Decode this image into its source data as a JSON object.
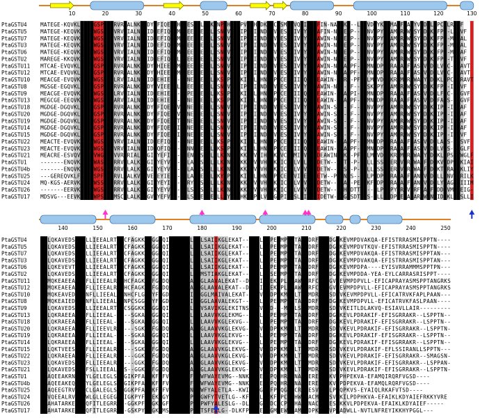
{
  "colors": {
    "identical": "#000000",
    "similar": "#c8c8c8",
    "conserved_red": "#d42020",
    "strand": "#ffff00",
    "helix": "#9cc8ee",
    "line": "#e08020",
    "magenta_arrow": "#ff33cc",
    "blue_arrow": "#1a33cc"
  },
  "block1": {
    "ruler_start": 1,
    "ruler_ticks": [
      "10",
      "20",
      "30",
      "40",
      "50",
      "60",
      "70",
      "80",
      "90",
      "100",
      "110",
      "120",
      "130"
    ],
    "secondary_structure": [
      {
        "type": "strand",
        "from": 4,
        "to": 10
      },
      {
        "type": "helix",
        "from": 16,
        "to": 31
      },
      {
        "type": "strand",
        "from": 38,
        "to": 43
      },
      {
        "type": "helix",
        "from": 49,
        "to": 56
      },
      {
        "type": "strand",
        "from": 64,
        "to": 69
      },
      {
        "type": "strand",
        "from": 71,
        "to": 74
      },
      {
        "type": "helix",
        "from": 76,
        "to": 88
      },
      {
        "type": "helix",
        "from": 95,
        "to": 122
      },
      {
        "type": "helix",
        "from": 127,
        "to": 130
      }
    ],
    "markers": [
      {
        "color": "magenta",
        "pos": 20
      },
      {
        "color": "magenta",
        "pos": 49
      },
      {
        "color": "magenta",
        "pos": 68
      },
      {
        "color": "magenta",
        "pos": 80
      },
      {
        "color": "magenta",
        "pos": 81
      },
      {
        "color": "blue",
        "pos": 130
      }
    ],
    "red_columns": [
      17,
      18,
      19,
      55,
      84,
      130
    ],
    "identical_columns": [
      13,
      14,
      15,
      16,
      17,
      18,
      20,
      21,
      22,
      26,
      31,
      32,
      35,
      40,
      41,
      43,
      44,
      47,
      48,
      50,
      51,
      53,
      56,
      58,
      59,
      60,
      63,
      64,
      66,
      69,
      70,
      72,
      75,
      76,
      79,
      81,
      82,
      83,
      84,
      90,
      91,
      93,
      97,
      98,
      101,
      104,
      105,
      108,
      110,
      112,
      115,
      117,
      119,
      122,
      125,
      126,
      130
    ],
    "similar_columns": [
      11,
      12,
      23,
      24,
      29,
      30,
      37,
      39,
      45,
      52,
      57,
      62,
      68,
      73,
      77,
      80,
      86,
      92,
      96,
      99,
      103,
      106,
      109,
      113,
      116,
      118,
      121,
      123,
      127
    ],
    "sequences": [
      {
        "name": "PtaGSTU4",
        "seq": "MATEGE-KQVKLHGVWGSPFVVRVRIALNKGIDYEFIQE-MHLEESEELLLKSNPVHKKIPVLIHNDKPVCESMIIVQYIDEAFIN-NAAEKP--LMNVDPYKRAMARFWASYVDDKLFPC-LRGVF"
      },
      {
        "name": "PtaGSTU5",
        "seq": "MATEGE-KEQVKLHGVWGSPFVVRVRIALNKGIDYEFIQE-MHPEESEELLLKSNPVHKKIPVLIHNDKPVCESMIIVQYIDEAFIN-NAAEKP--LMNVDPYKRAMARFWASYVDDKLFPC-LRGVF"
      },
      {
        "name": "PtaGSTU7",
        "seq": "MATEGE-KEQVKLHGVWGSPFVVRVRIALNKGIDYEFIQE-MHPEESEELLLKSNPVHKKIPVLIHNDKPVCESMIIVQYIDEAWIN-NAAEKP--LMNVDPYKRAMARFWASYVDDKLFPS-MRGAL"
      },
      {
        "name": "PtaGSTU3",
        "seq": "MATEGE-KEQVKLHGVWGSPFVVRVRIALNKGIDYEFIQE-MHPEESEELLLKSNPVHKKIPVLIHNDKPVCESMIIVQYIDEAWIN-NAAEKP--LMNVDPYKRAMARFWASYVDDKLFPS-MRGAL"
      },
      {
        "name": "PtaGSTU6",
        "seq": "MATEGE-KEQVKLHGVWGSPFVVRVRIALNKGIDYEFIQV-MHPEESEELLLKSNPVHKKIPVLIHNDKPVCESMIIVQYIDEAWIN-NAAEKP--LMNVDPYKRAMARFWASYVDDKLFPS-MRAAF"
      },
      {
        "name": "PtaGSTU2",
        "seq": "MAREGE-KKQVKLHGVWGSPFVVRVRIALNKGIDYEFIQE-LETEESEELLLKSNPVHKKIPVLIHNDKPVCESMIIVQYIDEAWIN-NAAEKP--LMNVDPYKRAMARFWASYVDDKLFPS-TRAVF"
      },
      {
        "name": "PtaGSTU11",
        "seq": "MTCAE-EVQVKLLGVWGSPFVLRVRIALNKGIDYEHIEE--MDLEESEELLLKSNPVHKKIPVLIHNDKPVCESMIIVQYIDEAWIN-NTRA-PF--LMNVDPYKRAMARFWASYVDDKLVPC-IRAVT"
      },
      {
        "name": "PtaGSTU12",
        "seq": "MTCAE-EVQVKLLGVWGSPFVLRVRIALNKGIDYEHIEE--MDLEESEELLLKSNPVHKKIPVLIHNDKPVCESMIIVQYIDEAWIN-NTRA-PF--LMNVDPYKRAMARFWASYVDDKLVPC-IRAVT"
      },
      {
        "name": "PtaGSTU10",
        "seq": "MEACGE-EVQVKLLGVWGSPFVLRVRIALNKGIDYEHIEE--TQNEESEELLLKSNPVHKKIPVLIHNDKPVCESMIIVQYIDEAWIN-NTRA-PF--LMNVDPYKRAMARFWASYVDDKLVPC-IRAVT"
      },
      {
        "name": "PtaGSTU8",
        "seq": "MGSGE-EGQVKLFGSWGSPFVLRVRIALNKGIDYQVIEE--LQFEESEELLLKSNPVHKKIPVLIHNDKPVCESMIIVQYIDEAWIN-NKA-PF--LTSKDPYKRAMARFWASYVDDKLFPS-ILRVF"
      },
      {
        "name": "PtaGSTU9",
        "seq": "MEACGE-EVQVKLLGVWGSPFVLRVRIALNKGIDYEHIED--LQPEESEELLLKSNPVHKKIPVLIHNDKPVCESMIIVQYIDEAWIN-NKA-PI--LMNVDPYKRAMARFWASYVDDKLFPC-LRGVF"
      },
      {
        "name": "PtaGSTU13",
        "seq": "MEGCGE-EEQVKLLGSWGSPFTARVRIALNKGIDYEHIEE--IHNEESEELLLKSNPVHKKIPVLIHNDKPVCESMIIVQYIDEAWIN-SKA-PF--LMNVDPYKRAMARFWASYVDDKFAQS-VLGVF"
      },
      {
        "name": "PtaGSTU18",
        "seq": "MGDGE-DGQVKLLGAWGSPFVLRVRIALNKGIDYEFIQE--VLNNESEELLLKSNPVHKKIPVLIHNDKPVCESMIIVQYIDEAWIN-SRA-PF--LMNVDPYKRAMARFWASYVDDKLIPS-ILGAF"
      },
      {
        "name": "PtaGSTU20",
        "seq": "MGDGE-DGQVKLLGAWGSPFVLRVRIALNKGIDYEFIQE--VLNNESEELLLKSNPVHKKIPVLIHNDKPVCESMIIVQYIDEAWIN-SKA-PF--LMNVDPYKRAMARFWASYVDDKLIPS-IVGAF"
      },
      {
        "name": "PtaGSTU19",
        "seq": "MGDGE-DGQVKLLGAWGSPFVLRVRIALNKGIDYEFIQE--TPNNESEELLLKSNPVHKKIPVLIHNDKPVCESMIIVQYIDEAWIN-SKA-PF--LMNVDPYKRAMARFWASYVDDKLIPS-IWGAF"
      },
      {
        "name": "PtaGSTU14",
        "seq": "MGDGE-DGQVKLLGAWGSPFVLRVRIALNKGIDYEFIQE--IHNNESEELLLKSNPVHKKIPVLIHNDKPVCESMIIVQYIDEAWIN-SKA-PF--LMNVDPYKRAMARFWASYVDDKLIPS-IWGAF"
      },
      {
        "name": "PtaGSTU15",
        "seq": "MGDGE-DGQVKLLGAWGSPFVLRVRIALNKGIDYEFIQE--IHNNESEELLLKSNPVHKKIPVLIHNDKPVCESMIIVQYIDEAWIN-SKA-PF--LMNVDPYKRAMARFWASYVDDKLIPS-IWGVF"
      },
      {
        "name": "PtaGSTU22",
        "seq": "MEACTE-EVQVKLLGAWGSPFVVRVRIALNKGIDYEFIQE--ADNEESEELLLKSNPVHKKIPVLIHNDKPVCESMIIVQYIDEAWIN-SKA-PF--LMNVDPYKRAMARFWASYVDDKLASS-IWSVF"
      },
      {
        "name": "PtaGSTU23",
        "seq": "MEACTE-EVQVKLLGSWGSPFVVRVRIALNKGIDYQFIQE--AENNESEELLLKSNPVHKKIPVLIHNDKPVCESMIIVQYIDEAWIN-SKA-PF--LMNVDPYKRAMARFWASYVDDKLVPS-VWGLF"
      },
      {
        "name": "PtaGSTU21",
        "seq": "MEACRE-ESVQVKLLGVWGSPFVVRVRIALNKGIDYEFIQE--SENNESEELLLKSNPVHKKIPVLIHNDKPVCESMIIVQYIDEAWIN-SKA-PF--LMNVDPYKRAMARFWASYVDDKLVPS-VWGLF"
      },
      {
        "name": "PtaGSTU1",
        "seq": "-------ENQVKLIGMWASPFSRRVELALKLKGIEYEYVEE--NLANRSEELLLKYNPVHKKIPVLVHNGKPICESLVILEYIDETW--PNTN-P---LLPSSPYERSVARFWAKFIDDKVVDPVTKIAIMKC"
      },
      {
        "name": "PtaGSTU4b",
        "seq": "-------ENQVKLLGTWGSPFSRRVELALKLKGIEYEYVEE--NLASSSEELLLKYNPVHKKIPVLVHNGKPICESLVIVEYIDETW--PLSE-P---LLPSSPYERSVARFWAKFIDDKTTRAVSKLIYGLL"
      },
      {
        "name": "PtaGSTU25",
        "seq": "---GEREQVKLFGTWGSPFVCMRVLLALKVKGVEYEYIEE--NVLACSEEVLLKYNPVHKKIPVLVHNGKPICESLVIVEYIDETW--PGSN-S---FLPSDPYERAVARFWANFVDDKLLENVVQRILKC"
      },
      {
        "name": "PtaGSTU24",
        "seq": "MQ-KGS-AERVKLLGFWSSPFSRRVELALKLKGIEYEYIEE--TRYEESEELLLKYNPVHKKIPVLVHNGKPICESLVIVEYIDETW--PSAS-PE--KFSDPYERAVARFWANFVDDKLYEAG-RIIIMT"
      },
      {
        "name": "PtaGSTU26",
        "seq": "-------EERVKLLGVWGSPFSRRVELALKIKGIEYEYVEE--NLSSRSEELLLKYNPVHKKIPVLVHNGKPICESLVIVEYIDETW--PGHSDTTPS--LLPSDPYERAVARFWAKFIDDKVMGLEIG-LKLMKR"
      },
      {
        "name": "PtaGSTU17",
        "seq": "MDSVG---EEVKLIRSWPSPFAMSCALALKIKGVEYEFVEE--NLSAEESEELLLKYNPVHKKIPVLVHNGKPICESLVIVEYIDETW--PGHSDTTPS--LLPSDPYERAVARFWANFIDDKLFDSLLIET-GLKLMKR"
      }
    ]
  },
  "block2": {
    "ruler_ticks": [
      "140",
      "150",
      "160",
      "170",
      "180",
      "190",
      "200",
      "210",
      "220",
      "230",
      "240",
      "250"
    ],
    "secondary_structure": [
      {
        "type": "helix",
        "from": 1,
        "to": 16
      },
      {
        "type": "helix",
        "from": 21,
        "to": 33
      },
      {
        "type": "helix",
        "from": 44,
        "to": 62
      },
      {
        "type": "helix",
        "from": 64,
        "to": 79
      },
      {
        "type": "helix",
        "from": 83,
        "to": 87
      },
      {
        "type": "helix",
        "from": 90,
        "to": 92
      },
      {
        "type": "helix",
        "from": 95,
        "to": 104
      }
    ],
    "markers": [
      {
        "color": "blue",
        "pos": 51
      }
    ],
    "red_columns": [
      51
    ],
    "identical_columns": [
      1,
      2,
      11,
      12,
      13,
      23,
      24,
      31,
      32,
      35,
      38,
      39,
      40,
      41,
      42,
      43,
      45,
      46,
      61,
      62,
      63,
      65,
      66,
      69,
      72,
      73,
      76,
      77,
      81,
      82,
      83,
      86
    ],
    "similar_columns": [
      3,
      16,
      27,
      33,
      44,
      47,
      48,
      49,
      50,
      52,
      53,
      54,
      67,
      71,
      75,
      80,
      84,
      88
    ],
    "sequences": [
      {
        "name": "PtaGSTU4",
        "seq": "QKLQKAVEDSVTNLLIEEALRTNHCFAGKKYFGGDQIGLVDIALGGLSAIIKGLEKAT--DSVLIDPEKMPLLTAWMDRFCKSDGVKEVMPDVAKQA-EFISTRRASMISPPTN------"
      },
      {
        "name": "PtaGSTU5",
        "seq": "QKLQKAVEDSVTNLLIEEALRTNQCFAGKKYFGGDQIGLVDIALGGLSAIIKGLEKAT--DSVLIDPEKMPLLTAWMDRFCKSDGVKEVMPDVTKQV-EFISTRRASMISPPTN------"
      },
      {
        "name": "PtaGSTU7",
        "seq": "QRLQKAVEDSVTNLLIEEALRTNQCFAGKKYFGGDQIGLVDIALGGLSAIIKGLEKAT--DSVLIDPEKMPLLTAWMDRFCKSDGVKEVMPDVAKQA-EFISTRRASMISPPTAN-----"
      },
      {
        "name": "PtaGSTU3",
        "seq": "QRLQKAVEDSVTNLLIEEALRTNQCFAGKKYFGGDQIGLVDIALGGLSAIIKGLEKAT--DSVLIDPEKMPLLTAWMDRFCKSDGVKEVMPDVAKQA-EFISTRRASMISPPTAN-----"
      },
      {
        "name": "PtaGSTU6",
        "seq": "QKLQKEVEVTVTNLLIEEALRTNHCFAGKKYFGGDQIGLVDIALGGLSAIIKGLEKAT--DSVLIDPEKMPLLTAWMDRFCQLDGVKEVMPDPA----EYISVRRAMMMSPPTPN----"
      },
      {
        "name": "PtaGSTU2",
        "seq": "QKLQKAVEDSVTNLLIEEALRTNHCFAGKKYFGGDQIGLVDIALGGMSTIAKGLEKAT--NTILIDSEKMPLLTAWMDRFCKSDGVKEVMPDDA-YEA-EYLCARRASRISPPT------"
      },
      {
        "name": "PtaGSTU11",
        "seq": "QKMQKEAEEAVANFLLIEEALRINHCFAGKKYFGGDQIGLVDIALGGLAAVALEKAT--DSVLIDPEKMPLLTAWMDRFCKSDGVKEVMPDPVLL-EFICAPRAYASMSPPTANGRKSFGN"
      },
      {
        "name": "PtaGSTU12",
        "seq": "QKMQKEAEEAVANFLLIEEALRINHCFAGKKYFGGDQIGLVDIALGGLAAVALEKAT--DSVLIDPEKMPLLTAWMDRFCKSDGVKEVMPDPVLL-EFICAPRAYASMSPPTANGRKSFGN"
      },
      {
        "name": "PtaGSTU10",
        "seq": "QKMQKEAVEDTVANFLLIEEALRTNHCFLGKKYFGGDQIGLVDIALGGLMAIVALEKAT--DSVLIDPEKMPLLTAWMDRFCKSDGVKEVMPDPVLL-EFICATRVKFAPLPAAN-----"
      },
      {
        "name": "PtaGSTU8",
        "seq": "QKMQKEAIEDAVANFLLIEEALRTNPCSGGKKYFGGDQIGLVDIALGGLAAVALEKGT--DSVLIDPEKMPLLTAWMDRFCKSDGVKEVMPDPVLL-EFICATRVKFASLPAAN-----"
      },
      {
        "name": "PtaGSTU9",
        "seq": "QKLQKAVEDSVTNLLIEEALRTSPCSGGKKYFGGDQIGLVDIALAGVSAVIKGLEKITNS-DSVLID---MPLLSAWMDRFCKSDGVKEITLDLAKVQ-ESIAVLLAIR-------------"
      },
      {
        "name": "PtaGSTU13",
        "seq": "QKLQKRAEEAVANFLLIEEAL-----SGKAYFGGDQIGLVDIALGGLAAVVKGLEKMG--NSVLIDPEKMPLLTAWMDRFCKSDGVKEVLPDRAKIF-EFISGRRAKR--LSPPTN---"
      },
      {
        "name": "PtaGSTU18",
        "seq": "QKLQKRAEEAVANFLLIEEAL-----SGKAYFGGDQIGLVDIALGGLAAVVKGLEKVG--NSVLIDPEKMPLLTAWMDRFCKSDGVKEVLPDRAKIF-EFISGRRAKR--LSPPTN---"
      },
      {
        "name": "PtaGSTU20",
        "seq": "QKLQKRAEEAVANFLLIEEVLRS----SGKAYFGGDQIGLVDIALGGLAAVVKGLEKVG--NSVLIDPEKMPLLTAWMDRFCKSDGVKEVLPDRAKIF-EFISGRRAKR--LSPPTN---"
      },
      {
        "name": "PtaGSTU19",
        "seq": "QKLQKRAEEAVANFLLIEEAL-----SGKAYFGGDQIGLVDIALGGLAAVVKGLEKVG--NSVLIDPEKMPLLTAWMDRFCKSDGVKEVLPDRAKIF-EFISGRRAKR--LSPPTN---"
      },
      {
        "name": "PtaGSTU14",
        "seq": "QKLQKRAEEAVANFLLIEEAL-----SGKAYFGGDQIGLVDIALGGLAAVVKGLEKVG--NSVLIDPEKMPLLTAWMDRFCKSDGVKEVLPDRAKIF-EFISGRRAKR--LSPPTN---"
      },
      {
        "name": "PtaGSTU15",
        "seq": "QKLQKTVEESVANFLLIEEALRS----SGKAYFGGDQIGLVDIALGGLAAVVKGLEKVG--NSVLIDPEKMPLLTAWMDRFCKSDGVKEVLPDRAKIF-EFLSSIRANLLSPPTN---"
      },
      {
        "name": "PtaGSTU22",
        "seq": "QKLQKRAEEAVANFLLIEEALRSS---GGKAYFGGDQIGLVDIALGGLAAVVKGLEKVG--NSVLIDPEKMPLLTAWMDRFCKSDGVKEVLPDRAKIF-EFISGRRAKR--SMAGSN---"
      },
      {
        "name": "PtaGSTU23",
        "seq": "QKLQKAVEDSLANFLLIEEALRSS---GGKAYFGGDQIGLVDIALGGLAAVVKGLEKVG--NSVLIDPEKMPLLTAWMDRFCKSDGVKEVLPDRAKIF-EFISGRRAKR--LSPPAN---"
      },
      {
        "name": "PtaGSTU21",
        "seq": "QKLQKAVEDSLANFSLLIEEALRSS--GGKAYFGGDQIGLVDIALGGLAAVVKGLEKVG--NSVLVDPEKMPLLTAWMDRFCKSDGVKEVLPDRAKIF-EFISGRRAKR--LSPPTN---"
      },
      {
        "name": "PtaGSTU1",
        "seq": "GKAQEEAKRNMLEYLGELEGLSG-GIKPFAGGKFGFVDIAFIPFASWFWAYEVMG--NNKIPLEFFPQRHRWVNACMERESVKKVLPHPEKVA-EFAMQIRQRFVGSD----"
      },
      {
        "name": "PtaGSTU4b",
        "seq": "GKAQEEAKEQFIEYLGELEGLSG-GIKPFAGGKFGFVDIAFIPFASWFWAYEVMG--NNKIPLEFFPQRHRWVNACMERESVKKVLPDPEKVA-EFAMQLRQRFVGSD----"
      },
      {
        "name": "PtaGSTU25",
        "seq": "QKAQEEGTRVMLECLGALEGLSG-GGKPFAGGKFGFVDIAFIPNSPWFYALETLA--KWIPWDGEFFPEQGWMCRERESVKKILPDQPKVS-EYAIQLRKAFVTSD----"
      },
      {
        "name": "PtaGSTU24",
        "seq": "QKVQEEALRVLSEWLGLLEGEGS-IGKPYFGGEKFGYVDVAIIPLTGWFYTVETLG--KFKIPLEDKFCPCLHHWVNACMERESVKKILPDPHKVA-EFAIKLKDYAIEFRKKYVRE"
      },
      {
        "name": "PtaGSTU26",
        "seq": "GKAHATARKEVIEQFITLEGRRAI-GGKPFAGGKFGFVDIAFIPNSPWFYALESLG--DLKFPGPEDCKCPGMHAWVNACMERESVKKVLPDPEKVA-EFAIKLKDYAIEF-----"
      },
      {
        "name": "PtaGSTU17",
        "seq": "GKAHATARKEVIEQFITLEGRRAI-GSKPYFGGKRMSLAIALVPWFTSFEALG--DLKFPGPPECCGMHEWVNAMPEDPKVASVPTADWLL-NVTLNFREYIKKHYPGGL---"
      }
    ]
  }
}
